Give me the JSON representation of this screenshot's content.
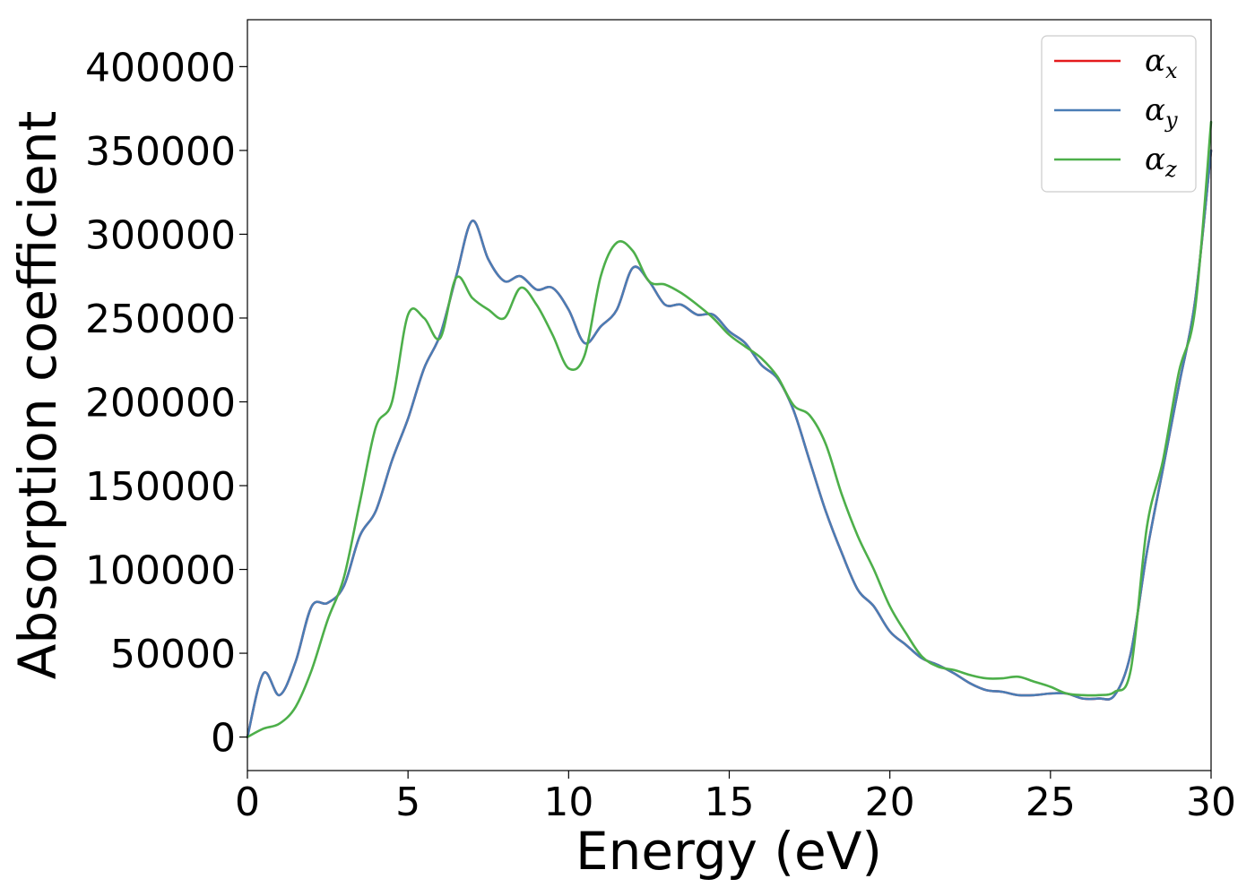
{
  "chart_data": {
    "type": "line",
    "xlabel": "Energy (eV)",
    "ylabel": "Absorption coefficient",
    "xlim": [
      0,
      30
    ],
    "ylim": [
      -20000,
      428000
    ],
    "xticks": [
      "0",
      "5",
      "10",
      "15",
      "20",
      "25",
      "30"
    ],
    "yticks": [
      "0",
      "50000",
      "100000",
      "150000",
      "200000",
      "250000",
      "300000",
      "350000",
      "400000"
    ],
    "grid": false,
    "legend_position": "top-right",
    "series": [
      {
        "name": "α",
        "sub": "x",
        "color": "#e41a1c",
        "x": [
          0,
          0.5,
          1,
          1.5,
          2,
          2.5,
          3,
          3.5,
          4,
          4.5,
          5,
          5.5,
          6,
          6.5,
          7,
          7.5,
          8,
          8.5,
          9,
          9.5,
          10,
          10.5,
          11,
          11.5,
          12,
          12.5,
          13,
          13.5,
          14,
          14.5,
          15,
          15.5,
          16,
          16.5,
          17,
          17.5,
          18,
          18.5,
          19,
          19.5,
          20,
          20.5,
          21,
          21.5,
          22,
          22.5,
          23,
          23.5,
          24,
          24.5,
          25,
          25.5,
          26,
          26.5,
          27,
          27.5,
          28,
          28.5,
          29,
          29.5,
          30
        ],
        "y": [
          0,
          38000,
          25000,
          45000,
          78000,
          80000,
          90000,
          120000,
          135000,
          165000,
          190000,
          220000,
          240000,
          275000,
          308000,
          285000,
          272000,
          275000,
          267000,
          268000,
          255000,
          235000,
          245000,
          255000,
          280000,
          272000,
          258000,
          258000,
          252000,
          252000,
          242000,
          235000,
          222000,
          214000,
          195000,
          165000,
          135000,
          110000,
          88000,
          78000,
          63000,
          55000,
          47000,
          43000,
          38000,
          32000,
          28000,
          27000,
          25000,
          25000,
          26000,
          26000,
          23000,
          23000,
          25000,
          50000,
          110000,
          160000,
          210000,
          260000,
          350000
        ]
      },
      {
        "name": "α",
        "sub": "y",
        "color": "#4a7db5",
        "x": [
          0,
          0.5,
          1,
          1.5,
          2,
          2.5,
          3,
          3.5,
          4,
          4.5,
          5,
          5.5,
          6,
          6.5,
          7,
          7.5,
          8,
          8.5,
          9,
          9.5,
          10,
          10.5,
          11,
          11.5,
          12,
          12.5,
          13,
          13.5,
          14,
          14.5,
          15,
          15.5,
          16,
          16.5,
          17,
          17.5,
          18,
          18.5,
          19,
          19.5,
          20,
          20.5,
          21,
          21.5,
          22,
          22.5,
          23,
          23.5,
          24,
          24.5,
          25,
          25.5,
          26,
          26.5,
          27,
          27.5,
          28,
          28.5,
          29,
          29.5,
          30
        ],
        "y": [
          0,
          38000,
          25000,
          45000,
          78000,
          80000,
          90000,
          120000,
          135000,
          165000,
          190000,
          220000,
          240000,
          275000,
          308000,
          285000,
          272000,
          275000,
          267000,
          268000,
          255000,
          235000,
          245000,
          255000,
          280000,
          272000,
          258000,
          258000,
          252000,
          252000,
          242000,
          235000,
          222000,
          214000,
          195000,
          165000,
          135000,
          110000,
          88000,
          78000,
          63000,
          55000,
          47000,
          43000,
          38000,
          32000,
          28000,
          27000,
          25000,
          25000,
          26000,
          26000,
          23000,
          23000,
          25000,
          50000,
          110000,
          160000,
          210000,
          260000,
          350000
        ]
      },
      {
        "name": "α",
        "sub": "z",
        "color": "#4daf4a",
        "x": [
          0,
          0.5,
          1,
          1.5,
          2,
          2.5,
          3,
          3.5,
          4,
          4.5,
          5,
          5.5,
          6,
          6.5,
          7,
          7.5,
          8,
          8.5,
          9,
          9.5,
          10,
          10.5,
          11,
          11.5,
          12,
          12.5,
          13,
          13.5,
          14,
          14.5,
          15,
          15.5,
          16,
          16.5,
          17,
          17.5,
          18,
          18.5,
          19,
          19.5,
          20,
          20.5,
          21,
          21.5,
          22,
          22.5,
          23,
          23.5,
          24,
          24.5,
          25,
          25.5,
          26,
          26.5,
          27,
          27.5,
          28,
          28.5,
          29,
          29.5,
          30
        ],
        "y": [
          0,
          5000,
          8000,
          18000,
          40000,
          70000,
          95000,
          140000,
          185000,
          200000,
          252000,
          250000,
          238000,
          274000,
          262000,
          255000,
          250000,
          268000,
          258000,
          240000,
          220000,
          228000,
          275000,
          295000,
          290000,
          272000,
          270000,
          265000,
          258000,
          250000,
          240000,
          233000,
          226000,
          215000,
          198000,
          192000,
          175000,
          145000,
          120000,
          100000,
          78000,
          62000,
          48000,
          42000,
          40000,
          37000,
          35000,
          35000,
          36000,
          33000,
          30000,
          26000,
          25000,
          25000,
          27000,
          40000,
          125000,
          165000,
          218000,
          255000,
          367000
        ]
      }
    ]
  }
}
